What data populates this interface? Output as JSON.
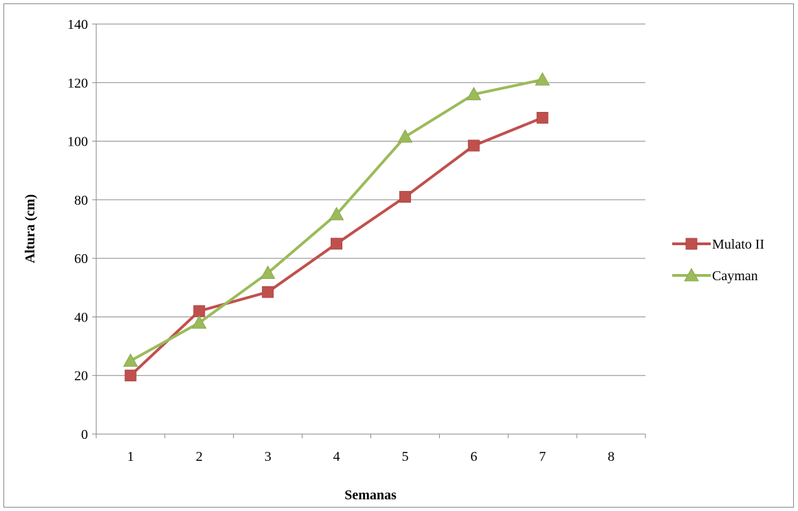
{
  "chart_data": {
    "type": "line",
    "title": "",
    "xlabel": "Semanas",
    "ylabel": "Altura  (cm)",
    "categories": [
      "1",
      "2",
      "3",
      "4",
      "5",
      "6",
      "7",
      "8"
    ],
    "ylim": [
      0,
      140
    ],
    "yticks": [
      "0",
      "20",
      "40",
      "60",
      "80",
      "100",
      "120",
      "140"
    ],
    "grid": true,
    "legend_position": "right",
    "series": [
      {
        "name": "Mulato II",
        "values": [
          20,
          42,
          48.5,
          65,
          81,
          98.5,
          108,
          null
        ],
        "color": "#C0504D",
        "marker": "square"
      },
      {
        "name": "Cayman",
        "values": [
          25,
          38,
          55,
          75,
          101.5,
          116,
          121,
          null
        ],
        "color": "#9BBB59",
        "marker": "triangle"
      }
    ]
  }
}
